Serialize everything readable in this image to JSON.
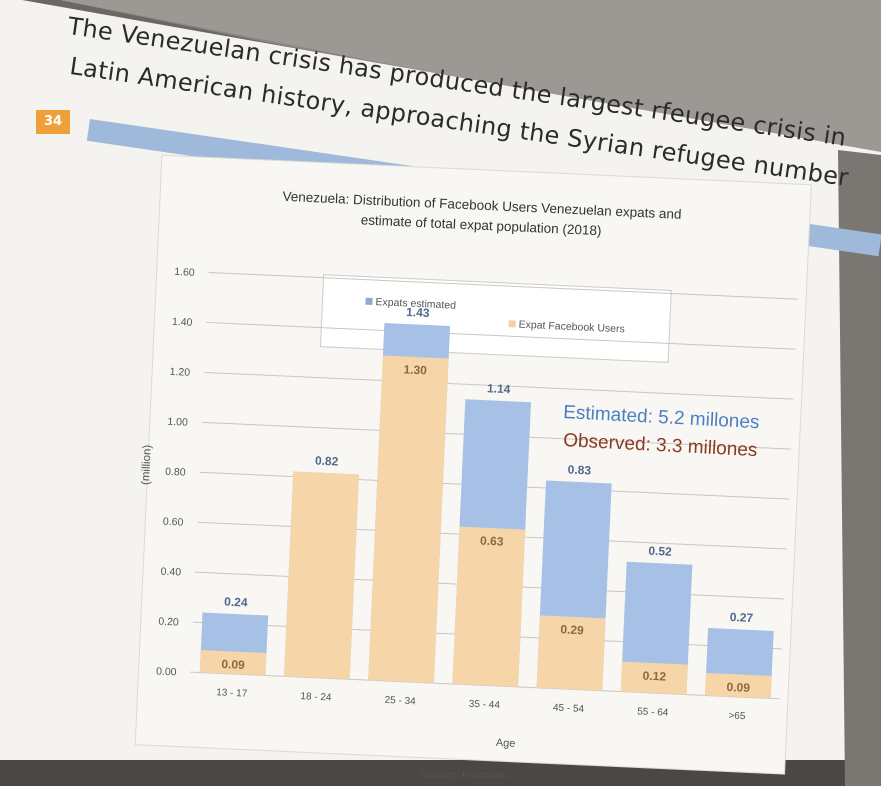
{
  "slide": {
    "number": "34",
    "title_line1": "The Venezuelan crisis has produced the largest rfeugee crisis in",
    "title_line2": "Latin American history, approaching the Syrian refugee number",
    "sources": "Sources: Facebook,"
  },
  "callout": {
    "estimated": "Estimated:  5.2 millones",
    "observed": "Observed:  3.3 millones",
    "estimated_color": "#4a7fc1",
    "observed_color": "#8a3a22"
  },
  "chart_data": {
    "type": "bar",
    "title_line1": "Venezuela: Distribution of Facebook Users Venezuelan expats and",
    "title_line2": "estimate of total expat population (2018)",
    "xlabel": "Age",
    "ylabel": "(million)",
    "ylim": [
      0,
      1.6
    ],
    "yticks": [
      "0.00",
      "0.20",
      "0.40",
      "0.60",
      "0.80",
      "1.00",
      "1.20",
      "1.40",
      "1.60"
    ],
    "categories": [
      "13 - 17",
      "18 - 24",
      "25 - 34",
      "35 - 44",
      "45 - 54",
      "55 - 64",
      ">65"
    ],
    "series": [
      {
        "name": "Expats estimated",
        "values": [
          0.24,
          0.82,
          1.43,
          1.14,
          0.83,
          0.52,
          0.27
        ],
        "labels": [
          "0.24",
          "0.82",
          "1.43",
          "1.14",
          "0.83",
          "0.52",
          "0.27"
        ],
        "color": "#a7c0e6"
      },
      {
        "name": "Expat Facebook Users",
        "values": [
          0.09,
          0.82,
          1.3,
          0.63,
          0.29,
          0.12,
          0.09
        ],
        "labels": [
          "0.09",
          "",
          "1.30",
          "0.63",
          "0.29",
          "0.12",
          "0.09"
        ],
        "color": "#f6d6a8"
      }
    ],
    "grid": true,
    "legend": "top"
  }
}
